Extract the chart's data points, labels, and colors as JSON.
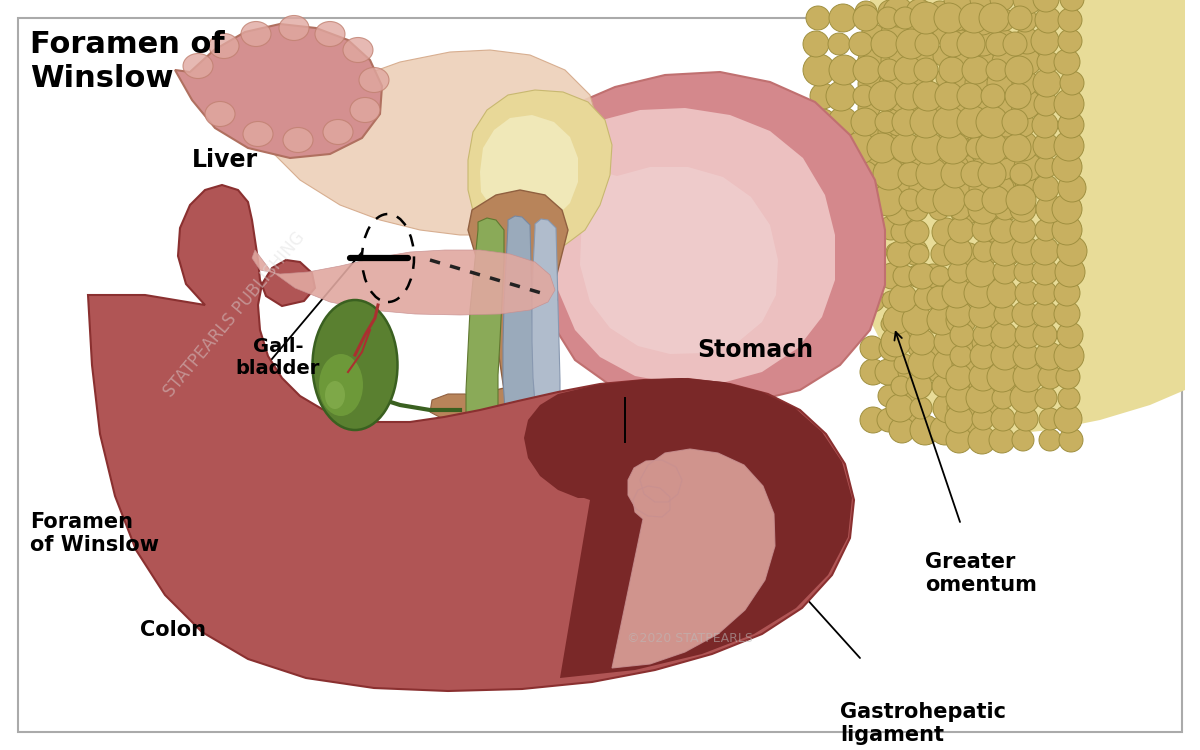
{
  "labels": {
    "title": "Foramen of\nWinslow",
    "liver": "Liver",
    "gallbladder": "Gall-\nbladder",
    "stomach": "Stomach",
    "gastrohepatic": "Gastrohepatic\nligament",
    "foramen": "Foramen\nof Winslow",
    "colon": "Colon",
    "greater_omentum": "Greater\nomentum",
    "copyright": "©2020 STATPEARLS",
    "watermark": "STATPEARLS PUBLISHING"
  },
  "colors": {
    "bg": "#ffffff",
    "liver_base": "#B05555",
    "liver_dark": "#7A2828",
    "liver_med": "#8B3535",
    "liver_pink_edge": "#D8908A",
    "liver_highlight": "#E0A8A0",
    "stomach_dark": "#D4888C",
    "stomach_light": "#ECC0C0",
    "stomach_inner": "#F0D0D0",
    "lesser_sac_bg": "#E8D898",
    "lesser_sac_light": "#F0E8B8",
    "hd_brown": "#B8845A",
    "hd_green": "#8AAA58",
    "hd_gray": "#9AAABB",
    "hd_gray2": "#B0BCCC",
    "duodenum_bg": "#C8A070",
    "gb_dark": "#3A6020",
    "gb_mid": "#5A8030",
    "gb_light": "#7AAA40",
    "gb_highlight": "#9AC060",
    "artery_red": "#AA3030",
    "colon_pink": "#D49090",
    "colon_light": "#E0A8A0",
    "omentum_yellow": "#C8B060",
    "omentum_light": "#DDD090",
    "omentum_dark": "#A09040",
    "omentum_bg": "#E8DC98",
    "peach_bg": "#EDD0B8",
    "pink_tissue": "#E8B0A8"
  }
}
